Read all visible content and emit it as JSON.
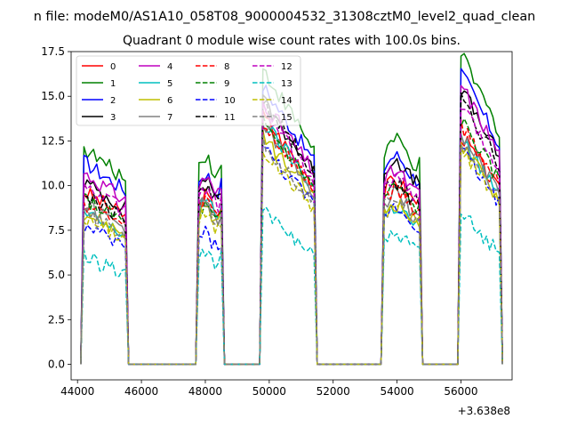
{
  "chart_data": {
    "type": "line",
    "suptitle": "n file: modeM0/AS1A10_058T08_9000004532_31308cztM0_level2_quad_clean",
    "title": "Quadrant 0 module wise count rates with 100.0s bins.",
    "xlabel": "",
    "ylabel": "",
    "x_offset_label": "+3.638e8",
    "xlim": [
      43800,
      57600
    ],
    "ylim": [
      -0.87,
      17.5
    ],
    "x_ticks": [
      44000,
      46000,
      48000,
      50000,
      52000,
      54000,
      56000
    ],
    "x_tick_labels": [
      "44000",
      "46000",
      "48000",
      "50000",
      "52000",
      "54000",
      "56000"
    ],
    "y_ticks": [
      0.0,
      2.5,
      5.0,
      7.5,
      10.0,
      12.5,
      15.0,
      17.5
    ],
    "y_tick_labels": [
      "0.0",
      "2.5",
      "5.0",
      "7.5",
      "10.0",
      "12.5",
      "15.0",
      "17.5"
    ],
    "grid": false,
    "legend_placement": "top-left",
    "segments": [
      {
        "start": 44200,
        "end": 45500
      },
      {
        "start": 47800,
        "end": 48500
      },
      {
        "start": 49800,
        "end": 51400
      },
      {
        "start": 53600,
        "end": 54700
      },
      {
        "start": 56000,
        "end": 57200
      }
    ],
    "gap_start_offset": 100,
    "series": [
      {
        "name": "0",
        "color": "#ff0000",
        "dash": "solid",
        "levels": [
          9.2,
          9.0,
          11.8,
          9.7,
          11.5
        ]
      },
      {
        "name": "1",
        "color": "#008000",
        "dash": "solid",
        "levels": [
          11.5,
          11.2,
          14.0,
          11.8,
          15.5
        ]
      },
      {
        "name": "2",
        "color": "#0000ff",
        "dash": "solid",
        "levels": [
          10.8,
          10.2,
          13.2,
          11.0,
          14.6
        ]
      },
      {
        "name": "3",
        "color": "#000000",
        "dash": "solid",
        "levels": [
          9.7,
          10.0,
          12.5,
          10.8,
          13.8
        ]
      },
      {
        "name": "4",
        "color": "#bf00bf",
        "dash": "solid",
        "levels": [
          10.2,
          10.0,
          12.5,
          10.2,
          14.0
        ]
      },
      {
        "name": "5",
        "color": "#00bfbf",
        "dash": "solid",
        "levels": [
          8.0,
          8.8,
          11.5,
          8.3,
          11.3
        ]
      },
      {
        "name": "6",
        "color": "#bfbf00",
        "dash": "solid",
        "levels": [
          8.1,
          8.4,
          10.8,
          8.5,
          11.0
        ]
      },
      {
        "name": "7",
        "color": "#808080",
        "dash": "solid",
        "levels": [
          8.5,
          8.6,
          11.3,
          9.0,
          11.5
        ]
      },
      {
        "name": "8",
        "color": "#ff0000",
        "dash": "dashed",
        "levels": [
          8.6,
          8.8,
          11.4,
          9.2,
          12.0
        ]
      },
      {
        "name": "9",
        "color": "#008000",
        "dash": "dashed",
        "levels": [
          8.8,
          8.4,
          11.5,
          9.3,
          12.2
        ]
      },
      {
        "name": "10",
        "color": "#0000ff",
        "dash": "dashed",
        "levels": [
          7.3,
          7.0,
          10.3,
          8.3,
          10.8
        ]
      },
      {
        "name": "11",
        "color": "#000000",
        "dash": "dashed",
        "levels": [
          9.0,
          9.6,
          12.5,
          9.6,
          13.3
        ]
      },
      {
        "name": "12",
        "color": "#bf00bf",
        "dash": "dashed",
        "levels": [
          9.5,
          9.4,
          12.0,
          9.8,
          13.0
        ]
      },
      {
        "name": "13",
        "color": "#00bfbf",
        "dash": "dashed",
        "levels": [
          5.7,
          6.0,
          7.2,
          6.8,
          7.5
        ]
      },
      {
        "name": "14",
        "color": "#bfbf00",
        "dash": "dashed",
        "levels": [
          7.8,
          8.0,
          10.2,
          8.4,
          10.8
        ]
      },
      {
        "name": "15",
        "color": "#808080",
        "dash": "dashed",
        "levels": [
          8.0,
          8.5,
          10.5,
          8.8,
          11.2
        ]
      }
    ]
  }
}
